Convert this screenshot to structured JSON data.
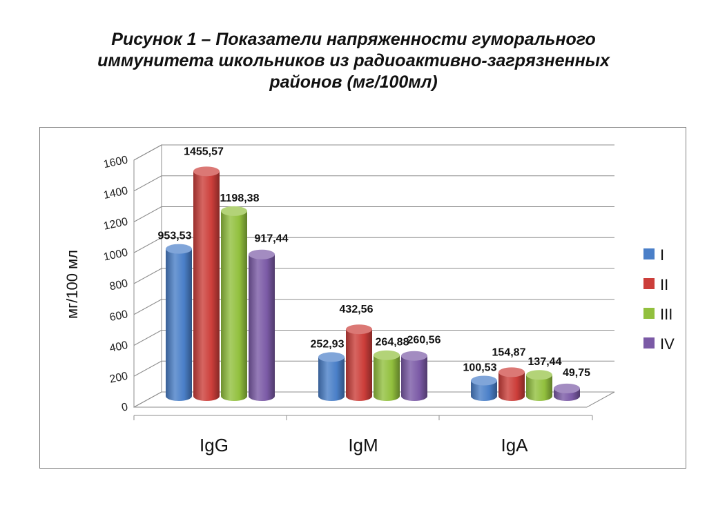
{
  "title": {
    "line1": "Рисунок 1 – Показатели напряженности гуморального",
    "line2": "иммунитета школьников из радиоактивно-загрязненных",
    "line3": "районов (мг/100мл)"
  },
  "chart_data": {
    "type": "bar",
    "style": "3d-cylinder",
    "categories": [
      "IgG",
      "IgM",
      "IgA"
    ],
    "ylabel": "мг/100 мл",
    "ylim": [
      0,
      1600
    ],
    "yticks": [
      "0",
      "200",
      "400",
      "600",
      "800",
      "1000",
      "1200",
      "1400",
      "1600"
    ],
    "grid": true,
    "legend_position": "right",
    "series": [
      {
        "name": "I",
        "color": "#4a7fc8",
        "values": [
          953.53,
          252.93,
          100.53
        ],
        "labels": [
          "953,53",
          "252,93",
          "100,53"
        ]
      },
      {
        "name": "II",
        "color": "#cc3e3a",
        "values": [
          1455.57,
          432.56,
          154.87
        ],
        "labels": [
          "1455,57",
          "432,56",
          "154,87"
        ]
      },
      {
        "name": "III",
        "color": "#92c03e",
        "values": [
          1198.38,
          264.88,
          137.44
        ],
        "labels": [
          "1198,38",
          "264,88",
          "137,44"
        ]
      },
      {
        "name": "IV",
        "color": "#7b5aa6",
        "values": [
          917.44,
          260.56,
          49.75
        ],
        "labels": [
          "917,44",
          "260,56",
          "49,75"
        ]
      }
    ]
  }
}
